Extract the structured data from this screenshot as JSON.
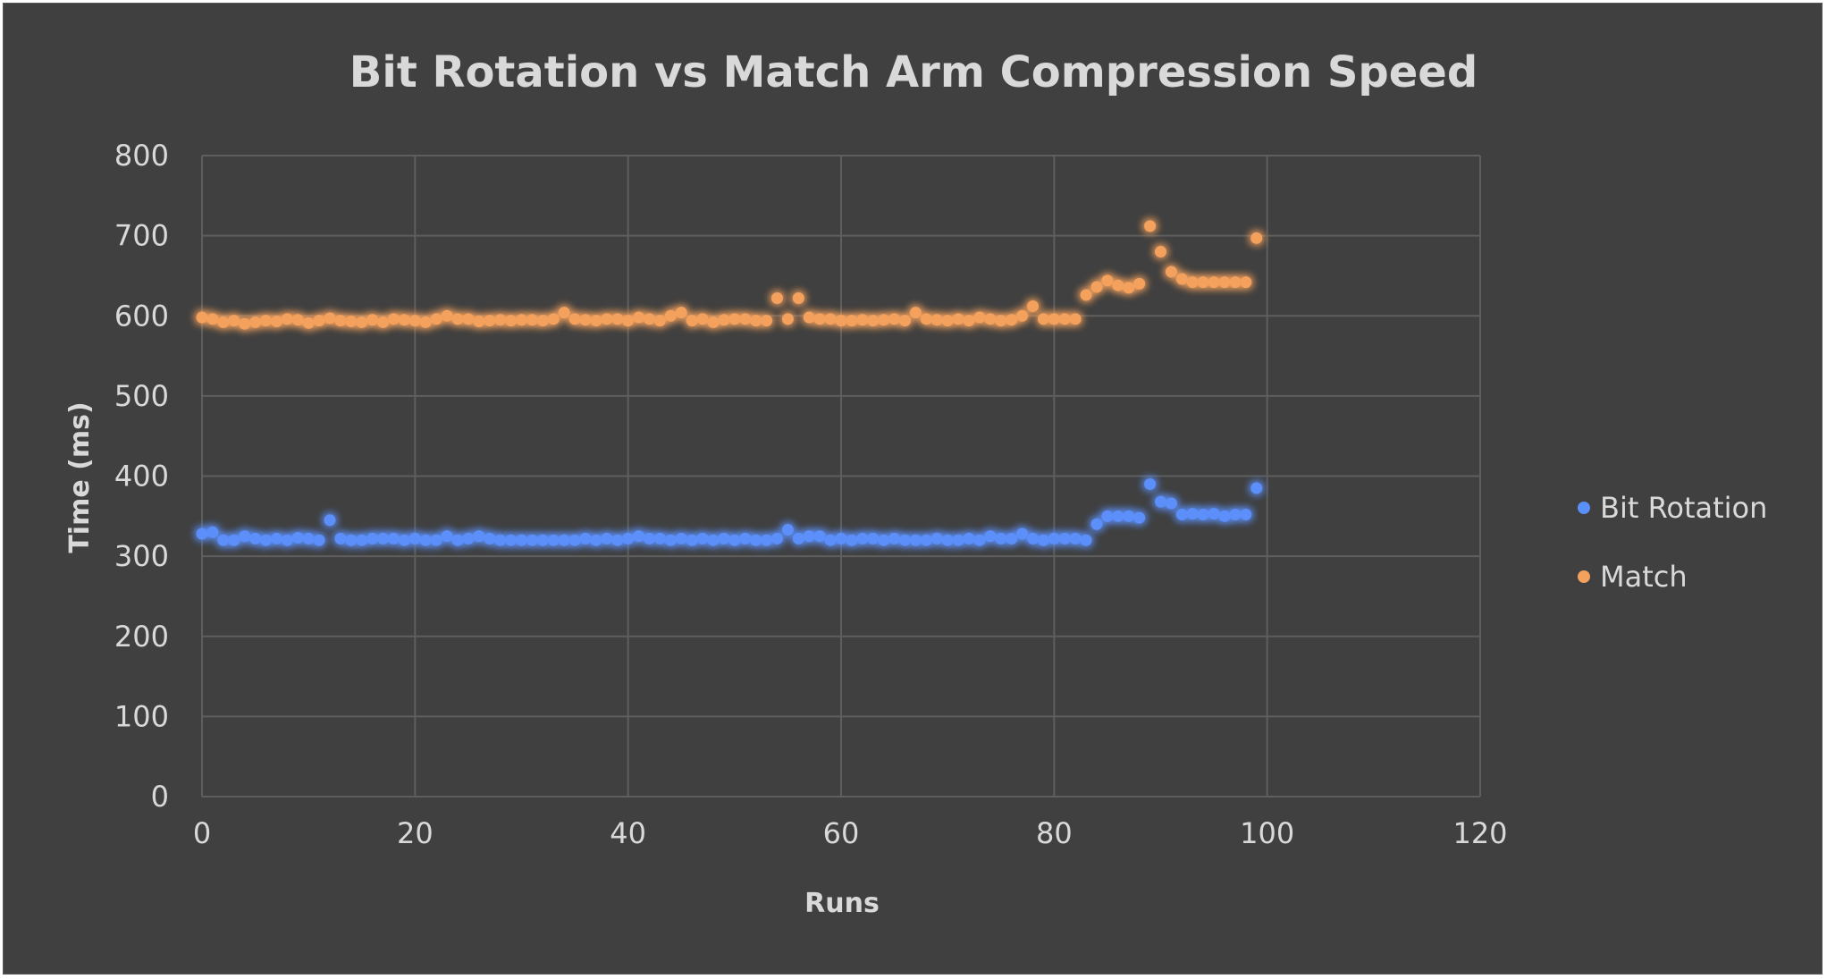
{
  "chart_data": {
    "type": "scatter",
    "title": "Bit Rotation vs Match Arm Compression Speed",
    "xlabel": "Runs",
    "ylabel": "Time (ms)",
    "xlim": [
      0,
      120
    ],
    "ylim": [
      0,
      800
    ],
    "xticks": [
      0,
      20,
      40,
      60,
      80,
      100,
      120
    ],
    "yticks": [
      0,
      100,
      200,
      300,
      400,
      500,
      600,
      700,
      800
    ],
    "grid": true,
    "legend_position": "right",
    "background": "#404040",
    "series": [
      {
        "name": "Bit Rotation",
        "color": "#5b8ff9",
        "x": [
          0,
          1,
          2,
          3,
          4,
          5,
          6,
          7,
          8,
          9,
          10,
          11,
          12,
          13,
          14,
          15,
          16,
          17,
          18,
          19,
          20,
          21,
          22,
          23,
          24,
          25,
          26,
          27,
          28,
          29,
          30,
          31,
          32,
          33,
          34,
          35,
          36,
          37,
          38,
          39,
          40,
          41,
          42,
          43,
          44,
          45,
          46,
          47,
          48,
          49,
          50,
          51,
          52,
          53,
          54,
          55,
          56,
          57,
          58,
          59,
          60,
          61,
          62,
          63,
          64,
          65,
          66,
          67,
          68,
          69,
          70,
          71,
          72,
          73,
          74,
          75,
          76,
          77,
          78,
          79,
          80,
          81,
          82,
          83,
          84,
          85,
          86,
          87,
          88,
          89,
          90,
          91,
          92,
          93,
          94,
          95,
          96,
          97,
          98,
          99
        ],
        "y": [
          328,
          330,
          320,
          320,
          325,
          322,
          320,
          322,
          320,
          323,
          322,
          320,
          345,
          322,
          320,
          320,
          322,
          322,
          322,
          320,
          322,
          320,
          320,
          325,
          320,
          322,
          325,
          322,
          320,
          320,
          320,
          320,
          320,
          320,
          320,
          320,
          322,
          320,
          322,
          320,
          322,
          325,
          322,
          322,
          320,
          322,
          320,
          322,
          320,
          322,
          320,
          322,
          320,
          320,
          322,
          333,
          322,
          325,
          325,
          320,
          322,
          320,
          322,
          322,
          320,
          322,
          320,
          320,
          320,
          322,
          320,
          320,
          322,
          320,
          325,
          322,
          322,
          328,
          322,
          320,
          322,
          322,
          322,
          320,
          340,
          350,
          350,
          350,
          348,
          390,
          368,
          366,
          352,
          353,
          352,
          353,
          350,
          352,
          352,
          385
        ]
      },
      {
        "name": "Match",
        "color": "#f4a15d",
        "x": [
          0,
          1,
          2,
          3,
          4,
          5,
          6,
          7,
          8,
          9,
          10,
          11,
          12,
          13,
          14,
          15,
          16,
          17,
          18,
          19,
          20,
          21,
          22,
          23,
          24,
          25,
          26,
          27,
          28,
          29,
          30,
          31,
          32,
          33,
          34,
          35,
          36,
          37,
          38,
          39,
          40,
          41,
          42,
          43,
          44,
          45,
          46,
          47,
          48,
          49,
          50,
          51,
          52,
          53,
          54,
          55,
          56,
          57,
          58,
          59,
          60,
          61,
          62,
          63,
          64,
          65,
          66,
          67,
          68,
          69,
          70,
          71,
          72,
          73,
          74,
          75,
          76,
          77,
          78,
          79,
          80,
          81,
          82,
          83,
          84,
          85,
          86,
          87,
          88,
          89,
          90,
          91,
          92,
          93,
          94,
          95,
          96,
          97,
          98,
          99
        ],
        "y": [
          598,
          596,
          592,
          594,
          590,
          592,
          594,
          593,
          596,
          595,
          591,
          594,
          597,
          594,
          593,
          592,
          595,
          592,
          596,
          595,
          594,
          592,
          596,
          600,
          596,
          596,
          593,
          594,
          595,
          594,
          595,
          595,
          594,
          596,
          604,
          596,
          595,
          594,
          596,
          596,
          594,
          598,
          596,
          594,
          600,
          604,
          594,
          596,
          592,
          595,
          596,
          596,
          594,
          594,
          622,
          596,
          622,
          598,
          596,
          596,
          594,
          594,
          595,
          594,
          595,
          596,
          594,
          604,
          596,
          595,
          594,
          596,
          594,
          598,
          596,
          594,
          595,
          600,
          612,
          596,
          596,
          596,
          596,
          626,
          636,
          644,
          638,
          635,
          640,
          712,
          680,
          655,
          646,
          642,
          642,
          642,
          642,
          642,
          642,
          697
        ]
      }
    ]
  }
}
